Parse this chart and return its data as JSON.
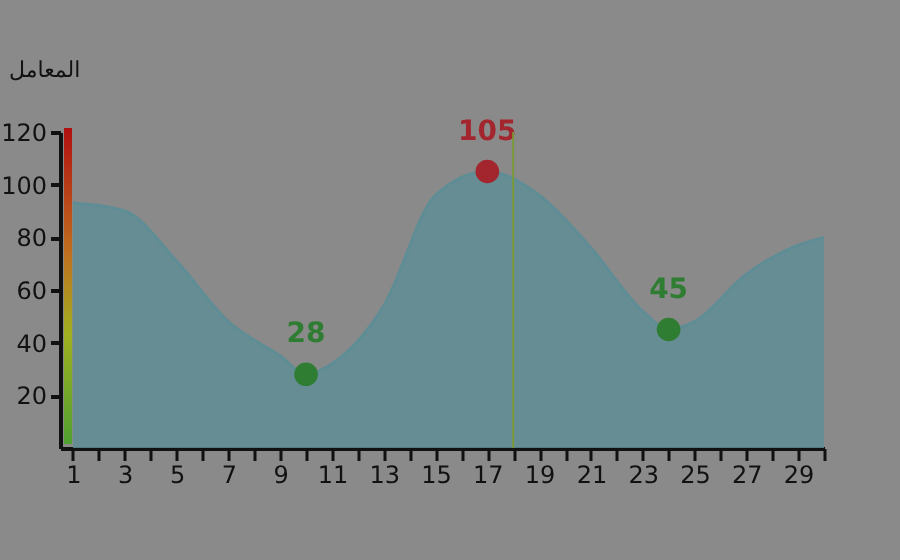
{
  "chart_data": {
    "type": "area",
    "ylabel": "المعامل",
    "xlim": [
      0.5,
      30
    ],
    "ylim": [
      0,
      120
    ],
    "xticks": [
      1,
      {
        "value": 2,
        "label": null
      },
      3,
      {
        "value": 4,
        "label": null
      },
      5,
      {
        "value": 6,
        "label": null
      },
      7,
      {
        "value": 8,
        "label": null
      },
      9,
      {
        "value": 10,
        "label": null
      },
      11,
      {
        "value": 12,
        "label": null
      },
      13,
      {
        "value": 14,
        "label": null
      },
      15,
      {
        "value": 16,
        "label": null
      },
      17,
      {
        "value": 18,
        "label": null
      },
      19,
      {
        "value": 20,
        "label": null
      },
      21,
      {
        "value": 22,
        "label": null
      },
      23,
      {
        "value": 24,
        "label": null
      },
      25,
      {
        "value": 26,
        "label": null
      },
      27,
      {
        "value": 28,
        "label": null
      },
      29,
      {
        "value": 30,
        "label": null
      }
    ],
    "yticks": [
      20,
      40,
      60,
      80,
      100,
      120
    ],
    "ref_lines": [
      {
        "axis": "x",
        "value": 18,
        "color": "#7a9a3a"
      }
    ],
    "series": [
      {
        "type": "area",
        "color": "#5f8d95",
        "x": [
          1,
          3,
          5,
          7,
          9,
          10,
          11,
          13,
          15,
          17,
          19,
          21,
          23,
          24,
          25,
          27,
          29,
          30
        ],
        "values": [
          93,
          90,
          71,
          48,
          35,
          28,
          32,
          54,
          96,
          105,
          96,
          76,
          52,
          45,
          48,
          66,
          77,
          80
        ]
      },
      {
        "type": "scatter",
        "colors": [
          "#2f7d32",
          "#a3262e",
          "#2f7d32"
        ],
        "x": [
          10,
          17,
          24
        ],
        "values": [
          28,
          105,
          45
        ],
        "value_labels": [
          "28",
          "105",
          "45"
        ]
      }
    ]
  }
}
